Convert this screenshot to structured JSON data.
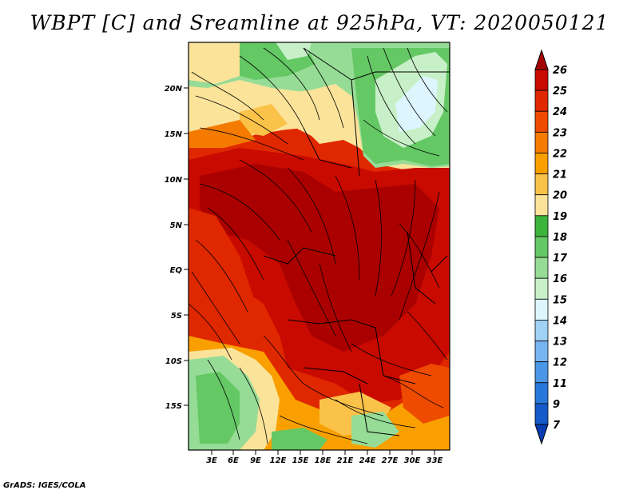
{
  "title": "WBPT [C] and Sreamline at 925hPa, VT: 2020050121",
  "credit": "GrADS: IGES/COLA",
  "map": {
    "lat_labels": [
      "20N",
      "15N",
      "10N",
      "5N",
      "EQ",
      "5S",
      "10S",
      "15S"
    ],
    "lon_labels": [
      "3E",
      "6E",
      "9E",
      "12E",
      "15E",
      "18E",
      "21E",
      "24E",
      "27E",
      "30E",
      "33E"
    ]
  },
  "colorbar": {
    "labels": [
      "26",
      "25",
      "24",
      "23",
      "22",
      "21",
      "20",
      "19",
      "18",
      "17",
      "16",
      "15",
      "14",
      "13",
      "12",
      "11",
      "9",
      "7"
    ],
    "colors": [
      "#a50000",
      "#c80a00",
      "#e02800",
      "#ee4a00",
      "#f47a00",
      "#f9a000",
      "#fbc24a",
      "#fce39a",
      "#3cb43c",
      "#64c864",
      "#96dc96",
      "#c8f0c8",
      "#dcf5ff",
      "#a0d2f5",
      "#78b4f0",
      "#4b96e6",
      "#2878dc",
      "#145ac8",
      "#0a3cb4"
    ]
  },
  "legend": {
    "description": "WBPT [C]"
  }
}
